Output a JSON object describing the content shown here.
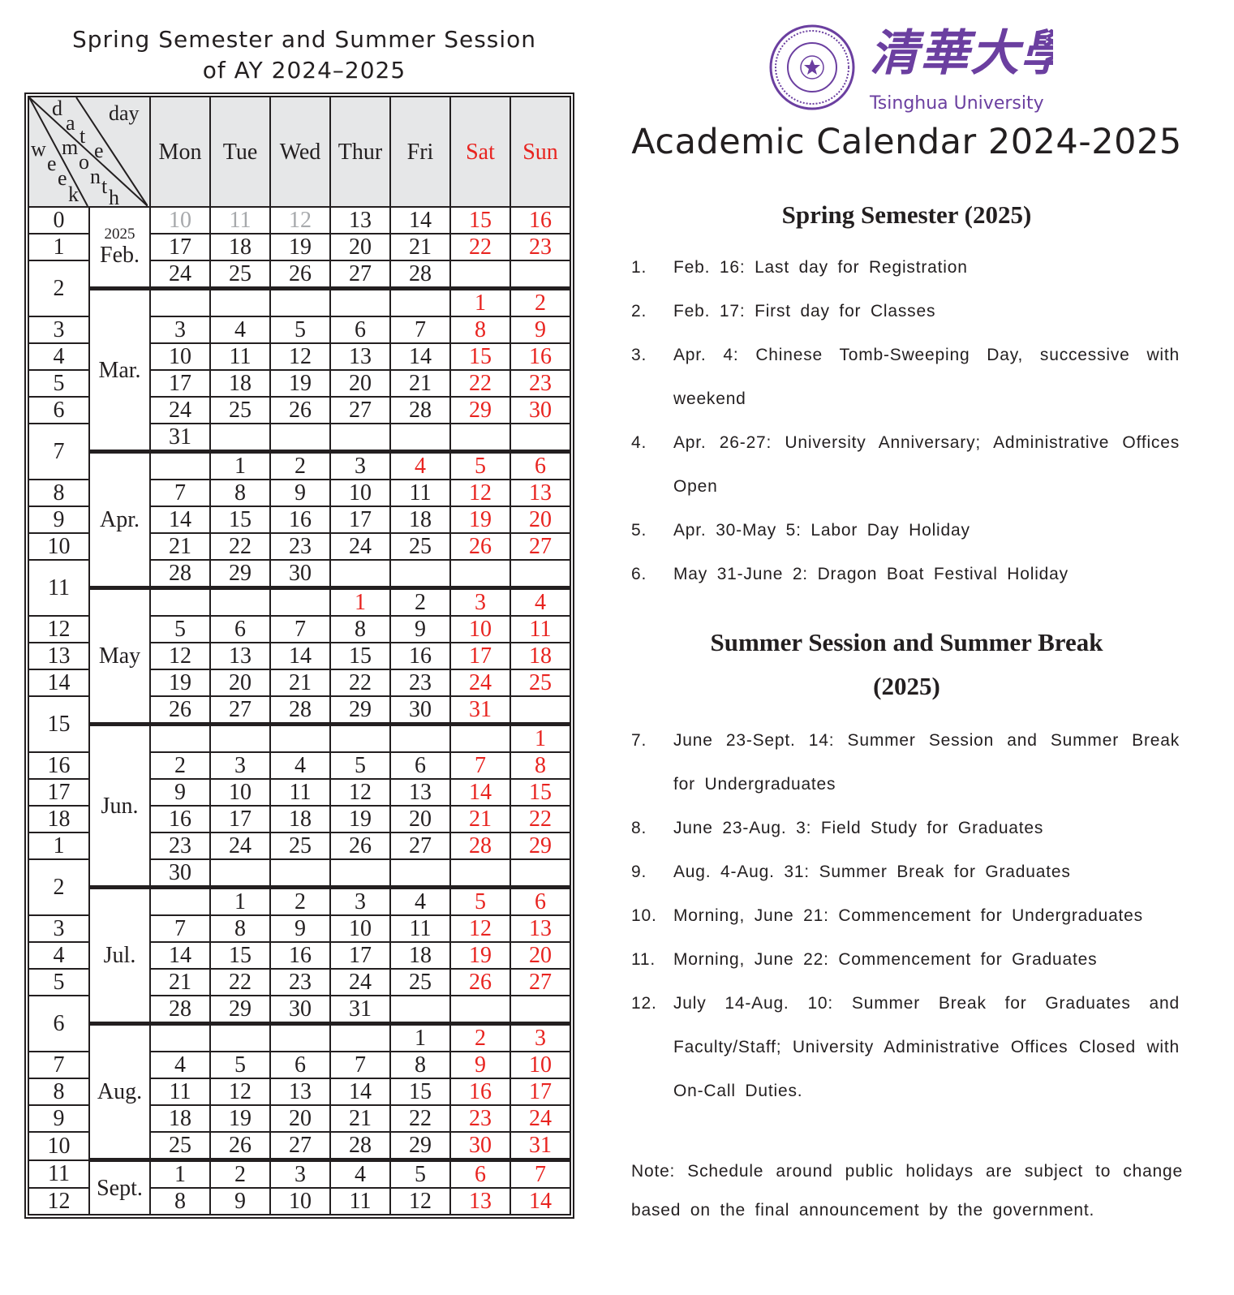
{
  "calendar": {
    "title_line1": "Spring Semester and Summer Session",
    "title_line2": "of AY 2024–2025",
    "header": {
      "day": "day",
      "date": "date",
      "month": "month",
      "week": "week"
    },
    "weekdays": [
      "Mon",
      "Tue",
      "Wed",
      "Thur",
      "Fri",
      "Sat",
      "Sun"
    ],
    "weekend_color": "#e8231f",
    "holiday_color": "#e8231f",
    "inactive_color": "#a7a9ac",
    "months": [
      {
        "name": "Feb.",
        "year": "2025",
        "red": [],
        "gray": [
          "10",
          "11",
          "12"
        ],
        "rows": [
          {
            "week": "0",
            "days": [
              "10",
              "11",
              "12",
              "13",
              "14",
              "15",
              "16"
            ]
          },
          {
            "week": "1",
            "days": [
              "17",
              "18",
              "19",
              "20",
              "21",
              "22",
              "23"
            ]
          },
          {
            "week": "2",
            "days": [
              "24",
              "25",
              "26",
              "27",
              "28",
              "",
              ""
            ]
          }
        ]
      },
      {
        "name": "Mar.",
        "red": [],
        "gray": [],
        "rows": [
          {
            "week": "2",
            "days": [
              "",
              "",
              "",
              "",
              "",
              "1",
              "2"
            ]
          },
          {
            "week": "3",
            "days": [
              "3",
              "4",
              "5",
              "6",
              "7",
              "8",
              "9"
            ]
          },
          {
            "week": "4",
            "days": [
              "10",
              "11",
              "12",
              "13",
              "14",
              "15",
              "16"
            ]
          },
          {
            "week": "5",
            "days": [
              "17",
              "18",
              "19",
              "20",
              "21",
              "22",
              "23"
            ]
          },
          {
            "week": "6",
            "days": [
              "24",
              "25",
              "26",
              "27",
              "28",
              "29",
              "30"
            ]
          },
          {
            "week": "7",
            "days": [
              "31",
              "",
              "",
              "",
              "",
              "",
              ""
            ]
          }
        ]
      },
      {
        "name": "Apr.",
        "red": [
          "4"
        ],
        "gray": [],
        "rows": [
          {
            "week": "7",
            "days": [
              "",
              "1",
              "2",
              "3",
              "4",
              "5",
              "6"
            ]
          },
          {
            "week": "8",
            "days": [
              "7",
              "8",
              "9",
              "10",
              "11",
              "12",
              "13"
            ]
          },
          {
            "week": "9",
            "days": [
              "14",
              "15",
              "16",
              "17",
              "18",
              "19",
              "20"
            ]
          },
          {
            "week": "10",
            "days": [
              "21",
              "22",
              "23",
              "24",
              "25",
              "26",
              "27"
            ]
          },
          {
            "week": "11",
            "days": [
              "28",
              "29",
              "30",
              "",
              "",
              "",
              ""
            ]
          }
        ]
      },
      {
        "name": "May",
        "red": [
          "1"
        ],
        "gray": [],
        "rows": [
          {
            "week": "11",
            "days": [
              "",
              "",
              "",
              "1",
              "2",
              "3",
              "4"
            ]
          },
          {
            "week": "12",
            "days": [
              "5",
              "6",
              "7",
              "8",
              "9",
              "10",
              "11"
            ]
          },
          {
            "week": "13",
            "days": [
              "12",
              "13",
              "14",
              "15",
              "16",
              "17",
              "18"
            ]
          },
          {
            "week": "14",
            "days": [
              "19",
              "20",
              "21",
              "22",
              "23",
              "24",
              "25"
            ]
          },
          {
            "week": "15",
            "days": [
              "26",
              "27",
              "28",
              "29",
              "30",
              "31",
              ""
            ]
          }
        ]
      },
      {
        "name": "Jun.",
        "red": [],
        "gray": [],
        "rows": [
          {
            "week": "15",
            "days": [
              "",
              "",
              "",
              "",
              "",
              "",
              "1"
            ]
          },
          {
            "week": "16",
            "days": [
              "2",
              "3",
              "4",
              "5",
              "6",
              "7",
              "8"
            ]
          },
          {
            "week": "17",
            "days": [
              "9",
              "10",
              "11",
              "12",
              "13",
              "14",
              "15"
            ]
          },
          {
            "week": "18",
            "days": [
              "16",
              "17",
              "18",
              "19",
              "20",
              "21",
              "22"
            ]
          },
          {
            "week": "1",
            "days": [
              "23",
              "24",
              "25",
              "26",
              "27",
              "28",
              "29"
            ]
          },
          {
            "week": "2",
            "days": [
              "30",
              "",
              "",
              "",
              "",
              "",
              ""
            ]
          }
        ]
      },
      {
        "name": "Jul.",
        "red": [],
        "gray": [],
        "rows": [
          {
            "week": "2",
            "days": [
              "",
              "1",
              "2",
              "3",
              "4",
              "5",
              "6"
            ]
          },
          {
            "week": "3",
            "days": [
              "7",
              "8",
              "9",
              "10",
              "11",
              "12",
              "13"
            ]
          },
          {
            "week": "4",
            "days": [
              "14",
              "15",
              "16",
              "17",
              "18",
              "19",
              "20"
            ]
          },
          {
            "week": "5",
            "days": [
              "21",
              "22",
              "23",
              "24",
              "25",
              "26",
              "27"
            ]
          },
          {
            "week": "6",
            "days": [
              "28",
              "29",
              "30",
              "31",
              "",
              "",
              ""
            ]
          }
        ]
      },
      {
        "name": "Aug.",
        "red": [],
        "gray": [],
        "rows": [
          {
            "week": "6",
            "days": [
              "",
              "",
              "",
              "",
              "1",
              "2",
              "3"
            ]
          },
          {
            "week": "7",
            "days": [
              "4",
              "5",
              "6",
              "7",
              "8",
              "9",
              "10"
            ]
          },
          {
            "week": "8",
            "days": [
              "11",
              "12",
              "13",
              "14",
              "15",
              "16",
              "17"
            ]
          },
          {
            "week": "9",
            "days": [
              "18",
              "19",
              "20",
              "21",
              "22",
              "23",
              "24"
            ]
          },
          {
            "week": "10",
            "days": [
              "25",
              "26",
              "27",
              "28",
              "29",
              "30",
              "31"
            ]
          }
        ]
      },
      {
        "name": "Sept.",
        "red": [],
        "gray": [],
        "rows": [
          {
            "week": "11",
            "days": [
              "1",
              "2",
              "3",
              "4",
              "5",
              "6",
              "7"
            ]
          },
          {
            "week": "12",
            "days": [
              "8",
              "9",
              "10",
              "11",
              "12",
              "13",
              "14"
            ]
          }
        ]
      }
    ]
  },
  "logo": {
    "chinese_name": "清華大學",
    "english_name": "Tsinghua University",
    "seal_year": "1911",
    "brand_color": "#6b3fa0"
  },
  "main_title": "Academic Calendar 2024-2025",
  "spring": {
    "heading": "Spring Semester (2025)",
    "items": [
      {
        "num": "1.",
        "text": "Feb. 16: Last day for Registration"
      },
      {
        "num": "2.",
        "text": "Feb. 17: First day for Classes"
      },
      {
        "num": "3.",
        "text": "Apr. 4: Chinese Tomb-Sweeping Day, successive with weekend"
      },
      {
        "num": "4.",
        "text": "Apr. 26-27: University Anniversary; Administrative Offices Open"
      },
      {
        "num": "5.",
        "text": "Apr. 30-May 5: Labor Day Holiday"
      },
      {
        "num": "6.",
        "text": "May 31-June 2: Dragon Boat Festival Holiday"
      }
    ]
  },
  "summer": {
    "heading_line1": "Summer Session and Summer Break",
    "heading_line2": "(2025)",
    "items": [
      {
        "num": "7.",
        "text": "June 23-Sept. 14: Summer Session and Summer Break for Undergraduates"
      },
      {
        "num": "8.",
        "text": "June 23-Aug. 3: Field Study for Graduates"
      },
      {
        "num": "9.",
        "text": "Aug. 4-Aug. 31: Summer Break for Graduates"
      },
      {
        "num": "10.",
        "text": "Morning, June 21: Commencement for Undergraduates"
      },
      {
        "num": "11.",
        "text": "Morning, June 22: Commencement for Graduates"
      },
      {
        "num": "12.",
        "text": "July 14-Aug. 10: Summer Break for Graduates and Faculty/Staff; University Administrative Offices Closed with On-Call Duties."
      }
    ]
  },
  "note": "Note: Schedule around public holidays are subject to change based on the final announcement by the government."
}
